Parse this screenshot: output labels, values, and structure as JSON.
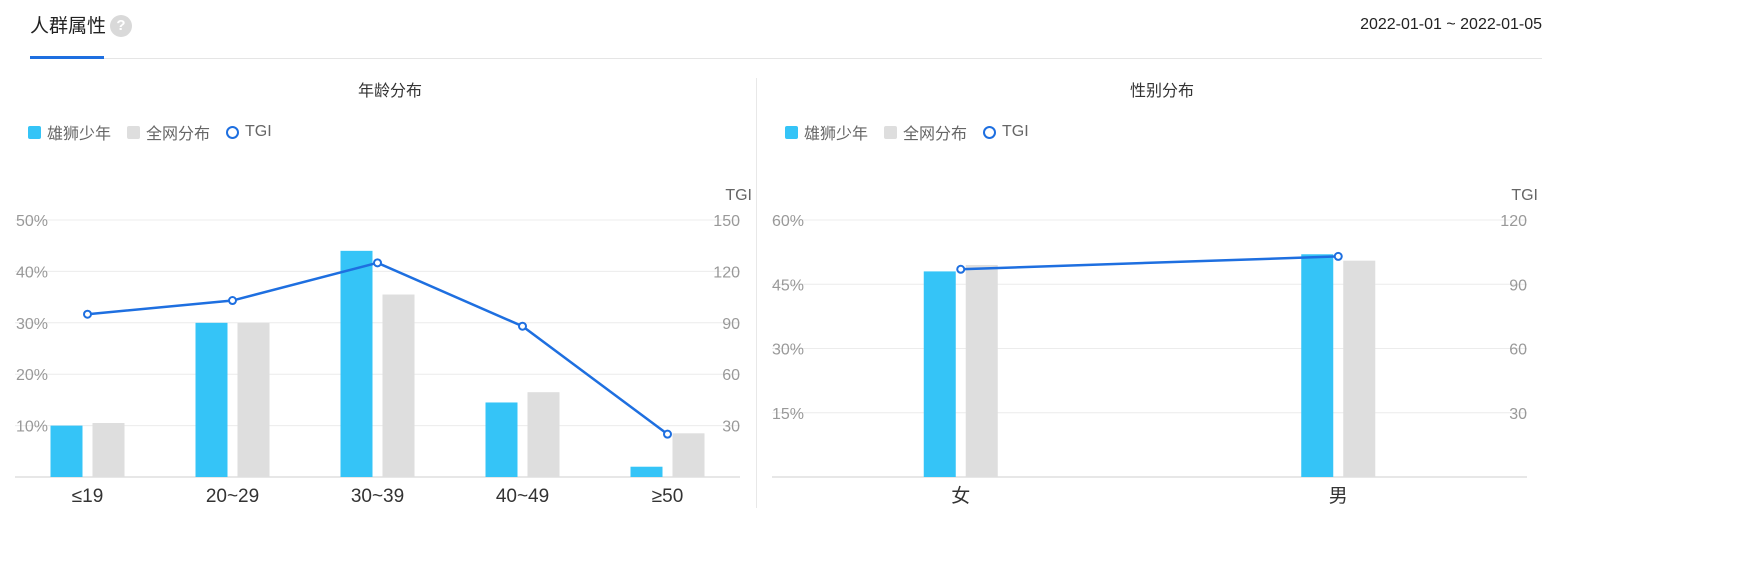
{
  "header": {
    "tab_label": "人群属性",
    "help_icon": "?",
    "date_range": "2022-01-01 ~ 2022-01-05"
  },
  "colors": {
    "series_primary": "#35c4f7",
    "series_secondary": "#dedede",
    "tgi_line": "#1e6fe0",
    "accent": "#1e6fe0"
  },
  "chart_data": [
    {
      "type": "bar",
      "title": "年龄分布",
      "legend": {
        "placement": "top-left",
        "items": [
          "雄狮少年",
          "全网分布",
          "TGI"
        ]
      },
      "categories": [
        "≤19",
        "20~29",
        "30~39",
        "40~49",
        "≥50"
      ],
      "series": [
        {
          "name": "雄狮少年",
          "kind": "bar",
          "axis": "left",
          "values": [
            10,
            30,
            44,
            14.5,
            2
          ]
        },
        {
          "name": "全网分布",
          "kind": "bar",
          "axis": "left",
          "values": [
            10.5,
            30,
            35.5,
            16.5,
            8.5
          ]
        },
        {
          "name": "TGI",
          "kind": "line",
          "axis": "right",
          "values": [
            95,
            103,
            125,
            88,
            25
          ]
        }
      ],
      "y_left": {
        "min": 0,
        "max": 50,
        "ticks": [
          "10%",
          "20%",
          "30%",
          "40%",
          "50%"
        ],
        "tick_values": [
          10,
          20,
          30,
          40,
          50
        ]
      },
      "y_right": {
        "label": "TGI",
        "min": 0,
        "max": 150,
        "ticks": [
          "30",
          "60",
          "90",
          "120",
          "150"
        ],
        "tick_values": [
          30,
          60,
          90,
          120,
          150
        ]
      },
      "grid": true
    },
    {
      "type": "bar",
      "title": "性别分布",
      "legend": {
        "placement": "top-left",
        "items": [
          "雄狮少年",
          "全网分布",
          "TGI"
        ]
      },
      "categories": [
        "女",
        "男"
      ],
      "series": [
        {
          "name": "雄狮少年",
          "kind": "bar",
          "axis": "left",
          "values": [
            48,
            52
          ]
        },
        {
          "name": "全网分布",
          "kind": "bar",
          "axis": "left",
          "values": [
            49.5,
            50.5
          ]
        },
        {
          "name": "TGI",
          "kind": "line",
          "axis": "right",
          "values": [
            97,
            103
          ]
        }
      ],
      "y_left": {
        "min": 0,
        "max": 60,
        "ticks": [
          "15%",
          "30%",
          "45%",
          "60%"
        ],
        "tick_values": [
          15,
          30,
          45,
          60
        ]
      },
      "y_right": {
        "label": "TGI",
        "min": 0,
        "max": 120,
        "ticks": [
          "30",
          "60",
          "90",
          "120"
        ],
        "tick_values": [
          30,
          60,
          90,
          120
        ]
      },
      "grid": true
    }
  ]
}
